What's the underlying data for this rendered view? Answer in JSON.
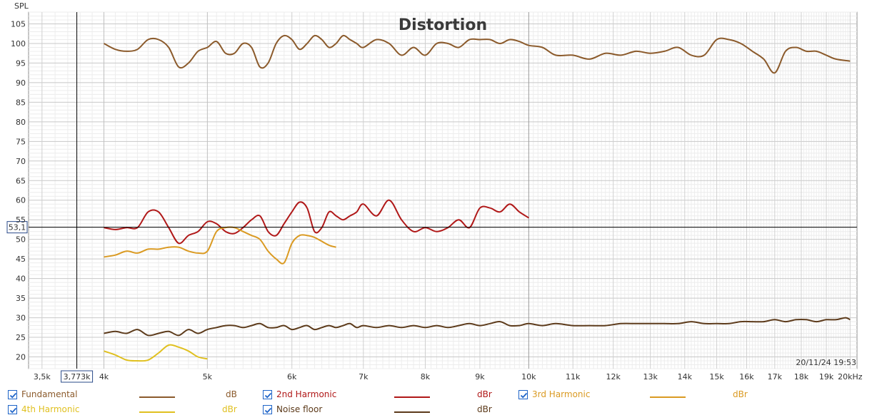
{
  "chart_data": {
    "type": "line",
    "title": "Distortion",
    "ylabel": "SPL",
    "x_unit": "Hz",
    "ylim": [
      17,
      108
    ],
    "xlim": [
      3400,
      20300
    ],
    "x_scale": "log",
    "grid": true,
    "y_ticks": [
      "105",
      "100",
      "95",
      "90",
      "85",
      "80",
      "75",
      "70",
      "65",
      "60",
      "55",
      "50",
      "45",
      "40",
      "35",
      "30",
      "25",
      "20"
    ],
    "x_ticks": [
      {
        "value": 3500,
        "label": "3,5k"
      },
      {
        "value": 4000,
        "label": "4k"
      },
      {
        "value": 5000,
        "label": "5k"
      },
      {
        "value": 6000,
        "label": "6k"
      },
      {
        "value": 7000,
        "label": "7k"
      },
      {
        "value": 8000,
        "label": "8k"
      },
      {
        "value": 9000,
        "label": "9k"
      },
      {
        "value": 10000,
        "label": "10k"
      },
      {
        "value": 11000,
        "label": "11k"
      },
      {
        "value": 12000,
        "label": "12k"
      },
      {
        "value": 13000,
        "label": "13k"
      },
      {
        "value": 14000,
        "label": "14k"
      },
      {
        "value": 15000,
        "label": "15k"
      },
      {
        "value": 16000,
        "label": "16k"
      },
      {
        "value": 17000,
        "label": "17k"
      },
      {
        "value": 18000,
        "label": "18k"
      },
      {
        "value": 19000,
        "label": "19k"
      },
      {
        "value": 20000,
        "label": "20kHz"
      }
    ],
    "cursor": {
      "x_label": "3,773k",
      "x": 3773,
      "y_label": "53,1",
      "y": 53.1
    },
    "timestamp": "20/11/24 19:53",
    "series": [
      {
        "name": "Fundamental",
        "unit": "dB",
        "color": "#8B5A2B",
        "x": [
          4000,
          4100,
          4200,
          4300,
          4400,
          4500,
          4600,
          4700,
          4800,
          4900,
          5000,
          5100,
          5200,
          5300,
          5400,
          5500,
          5600,
          5700,
          5800,
          5900,
          6000,
          6100,
          6200,
          6300,
          6400,
          6500,
          6600,
          6700,
          6800,
          6900,
          7000,
          7200,
          7400,
          7600,
          7800,
          8000,
          8200,
          8400,
          8600,
          8800,
          9000,
          9200,
          9400,
          9600,
          9800,
          10000,
          10300,
          10600,
          11000,
          11400,
          11800,
          12200,
          12600,
          13000,
          13400,
          13800,
          14200,
          14600,
          15000,
          15400,
          15800,
          16200,
          16600,
          17000,
          17400,
          17800,
          18200,
          18600,
          19000,
          19400,
          20000
        ],
        "y": [
          100,
          98.5,
          98,
          98.5,
          101,
          101,
          99,
          94,
          95,
          98,
          99,
          100.5,
          97.5,
          97.5,
          100,
          99,
          94,
          95,
          100,
          102,
          101,
          98.5,
          100,
          102,
          101,
          99,
          100,
          102,
          101,
          100,
          99,
          101,
          100,
          97,
          99,
          97,
          100,
          100,
          99,
          101,
          101,
          101,
          100,
          101,
          100.5,
          99.5,
          99,
          97,
          97,
          96,
          97.5,
          97,
          98,
          97.5,
          98,
          99,
          97,
          97,
          101,
          101,
          100,
          98,
          96,
          92.5,
          98,
          99,
          98,
          98,
          97,
          96,
          95.5
        ]
      },
      {
        "name": "2nd Harmonic",
        "unit": "dBr",
        "color": "#B01818",
        "x": [
          4000,
          4100,
          4200,
          4300,
          4400,
          4500,
          4600,
          4700,
          4800,
          4900,
          5000,
          5100,
          5200,
          5300,
          5400,
          5500,
          5600,
          5700,
          5800,
          5900,
          6000,
          6100,
          6200,
          6300,
          6400,
          6500,
          6600,
          6700,
          6800,
          6900,
          7000,
          7200,
          7400,
          7600,
          7800,
          8000,
          8200,
          8400,
          8600,
          8800,
          9000,
          9200,
          9400,
          9600,
          9800,
          10000
        ],
        "y": [
          53,
          52.5,
          53,
          53,
          57,
          57,
          53,
          49,
          51,
          52,
          54.5,
          54,
          52,
          51.5,
          53,
          55,
          56,
          52,
          51,
          54,
          57,
          59.5,
          58,
          52,
          53,
          57,
          56,
          55,
          56,
          57,
          59,
          56,
          60,
          55,
          52,
          53,
          52,
          53,
          55,
          53,
          58,
          58,
          57,
          59,
          57,
          55.5
        ]
      },
      {
        "name": "3rd Harmonic",
        "unit": "dBr",
        "color": "#DA9A22",
        "x": [
          4000,
          4100,
          4200,
          4300,
          4400,
          4500,
          4600,
          4700,
          4800,
          4900,
          5000,
          5100,
          5200,
          5300,
          5400,
          5500,
          5600,
          5700,
          5800,
          5900,
          6000,
          6100,
          6200,
          6300,
          6400,
          6500,
          6600
        ],
        "y": [
          45.5,
          46,
          47,
          46.5,
          47.5,
          47.5,
          48,
          48,
          47,
          46.5,
          47,
          52,
          53,
          53,
          52,
          51,
          50,
          47,
          45,
          44,
          49,
          51,
          51,
          50.5,
          49.5,
          48.5,
          48
        ]
      },
      {
        "name": "4th Harmonic",
        "unit": "dBr",
        "color": "#E0C020",
        "x": [
          4000,
          4100,
          4200,
          4300,
          4400,
          4500,
          4600,
          4700,
          4800,
          4900,
          5000
        ],
        "y": [
          21.5,
          20.5,
          19.2,
          19,
          19.2,
          21,
          23,
          22.5,
          21.5,
          20,
          19.5
        ]
      },
      {
        "name": "Noise floor",
        "unit": "dBr",
        "color": "#5C3A1A",
        "x": [
          4000,
          4100,
          4200,
          4300,
          4400,
          4500,
          4600,
          4700,
          4800,
          4900,
          5000,
          5100,
          5200,
          5300,
          5400,
          5500,
          5600,
          5700,
          5800,
          5900,
          6000,
          6100,
          6200,
          6300,
          6400,
          6500,
          6600,
          6700,
          6800,
          6900,
          7000,
          7200,
          7400,
          7600,
          7800,
          8000,
          8200,
          8400,
          8600,
          8800,
          9000,
          9200,
          9400,
          9600,
          9800,
          10000,
          10300,
          10600,
          11000,
          11400,
          11800,
          12200,
          12600,
          13000,
          13400,
          13800,
          14200,
          14600,
          15000,
          15400,
          15800,
          16200,
          16600,
          17000,
          17400,
          17800,
          18200,
          18600,
          19000,
          19400,
          19800,
          20000
        ],
        "y": [
          26,
          26.5,
          26,
          27,
          25.5,
          26,
          26.5,
          25.5,
          27,
          26,
          27,
          27.5,
          28,
          28,
          27.5,
          28,
          28.5,
          27.5,
          27.5,
          28,
          27,
          27.5,
          28,
          27,
          27.5,
          28,
          27.5,
          28,
          28.5,
          27.5,
          28,
          27.5,
          28,
          27.5,
          28,
          27.5,
          28,
          27.5,
          28,
          28.5,
          28,
          28.5,
          29,
          28,
          28,
          28.5,
          28,
          28.5,
          28,
          28,
          28,
          28.5,
          28.5,
          28.5,
          28.5,
          28.5,
          29,
          28.5,
          28.5,
          28.5,
          29,
          29,
          29,
          29.5,
          29,
          29.5,
          29.5,
          29,
          29.5,
          29.5,
          30,
          29.5
        ]
      }
    ]
  },
  "legend": [
    {
      "name": "Fundamental",
      "unit": "dB",
      "checked": true
    },
    {
      "name": "2nd Harmonic",
      "unit": "dBr",
      "checked": true
    },
    {
      "name": "3rd Harmonic",
      "unit": "dBr",
      "checked": true
    },
    {
      "name": "4th Harmonic",
      "unit": "dBr",
      "checked": true
    },
    {
      "name": "Noise floor",
      "unit": "dBr",
      "checked": true
    }
  ]
}
